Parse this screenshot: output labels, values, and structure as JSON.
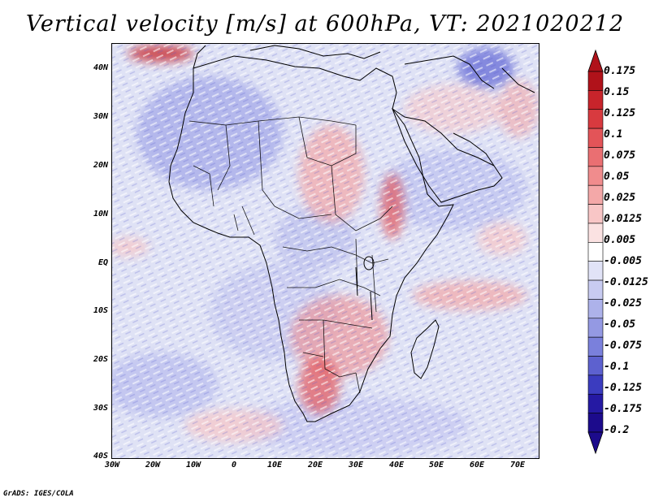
{
  "title": "Vertical velocity [m/s] at 600hPa, VT: 2021020212",
  "lat_labels": [
    "40N",
    "30N",
    "20N",
    "10N",
    "EQ",
    "10S",
    "20S",
    "30S",
    "40S"
  ],
  "lon_labels": [
    "30W",
    "20W",
    "10W",
    "0",
    "10E",
    "20E",
    "30E",
    "40E",
    "50E",
    "60E",
    "70E"
  ],
  "colorbar": {
    "levels": [
      "0.175",
      "0.15",
      "0.125",
      "0.1",
      "0.075",
      "0.05",
      "0.025",
      "0.0125",
      "0.005",
      "-0.005",
      "-0.0125",
      "-0.025",
      "-0.05",
      "-0.075",
      "-0.1",
      "-0.125",
      "-0.175",
      "-0.2"
    ],
    "colors": [
      "#b0121a",
      "#c8242b",
      "#d83a3f",
      "#e35458",
      "#ea6f72",
      "#f08c8d",
      "#f4a8a8",
      "#f8c6c6",
      "#fbe2e2",
      "#ffffff",
      "#e1e3f7",
      "#c8cbf1",
      "#adb2ea",
      "#9499e3",
      "#7a80dc",
      "#5d61cf",
      "#3b3cbf",
      "#2519a3",
      "#1c0b8c"
    ]
  },
  "footer": "GrADS: IGES/COLA"
}
